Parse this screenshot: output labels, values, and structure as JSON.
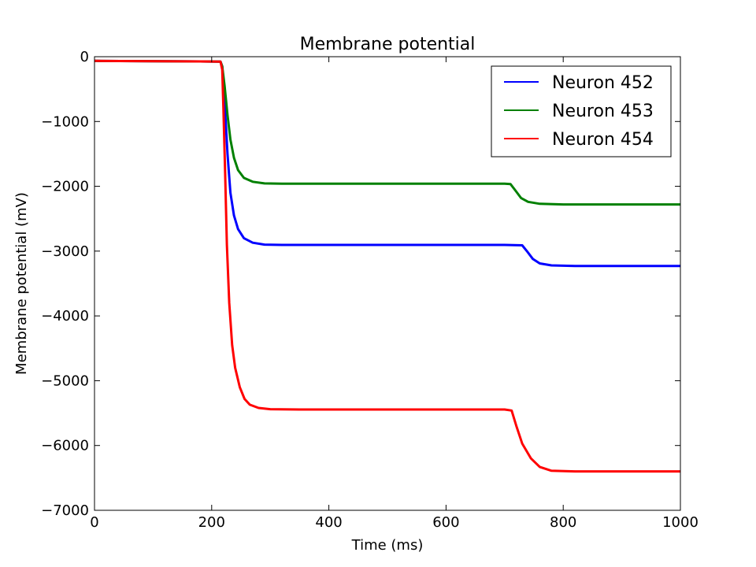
{
  "chart_data": {
    "type": "line",
    "title": "Membrane potential",
    "xlabel": "Time (ms)",
    "ylabel": "Membrane potential (mV)",
    "xlim": [
      0,
      1000
    ],
    "ylim": [
      -7000,
      0
    ],
    "xticks": [
      0,
      200,
      400,
      600,
      800,
      1000
    ],
    "yticks": [
      0,
      -1000,
      -2000,
      -3000,
      -4000,
      -5000,
      -6000,
      -7000
    ],
    "xtick_labels": [
      "0",
      "200",
      "400",
      "600",
      "800",
      "1000"
    ],
    "ytick_labels": [
      "0",
      "−1000",
      "−2000",
      "−3000",
      "−4000",
      "−5000",
      "−6000",
      "−7000"
    ],
    "grid": false,
    "legend_position": "top-right",
    "series": [
      {
        "name": "Neuron 452",
        "color": "#0000ff",
        "x": [
          0,
          215,
          218,
          222,
          227,
          232,
          238,
          245,
          255,
          270,
          290,
          320,
          400,
          500,
          600,
          700,
          730,
          738,
          748,
          760,
          780,
          820,
          900,
          1000
        ],
        "y": [
          -65,
          -75,
          -150,
          -700,
          -1500,
          -2100,
          -2450,
          -2660,
          -2800,
          -2870,
          -2900,
          -2905,
          -2905,
          -2905,
          -2905,
          -2905,
          -2910,
          -3000,
          -3120,
          -3190,
          -3220,
          -3230,
          -3230,
          -3230
        ]
      },
      {
        "name": "Neuron 453",
        "color": "#008000",
        "x": [
          0,
          215,
          218,
          222,
          227,
          232,
          238,
          245,
          255,
          270,
          290,
          320,
          400,
          500,
          600,
          700,
          710,
          718,
          728,
          740,
          760,
          800,
          900,
          1000
        ],
        "y": [
          -65,
          -75,
          -150,
          -450,
          -900,
          -1280,
          -1560,
          -1750,
          -1870,
          -1930,
          -1955,
          -1960,
          -1960,
          -1960,
          -1960,
          -1960,
          -1965,
          -2060,
          -2180,
          -2240,
          -2270,
          -2280,
          -2280,
          -2280
        ]
      },
      {
        "name": "Neuron 454",
        "color": "#ff0000",
        "x": [
          0,
          215,
          218,
          220,
          223,
          226,
          230,
          235,
          240,
          248,
          256,
          265,
          280,
          300,
          350,
          400,
          500,
          600,
          700,
          712,
          720,
          730,
          745,
          760,
          780,
          820,
          900,
          1000
        ],
        "y": [
          -65,
          -75,
          -200,
          -800,
          -1800,
          -2900,
          -3800,
          -4450,
          -4800,
          -5100,
          -5280,
          -5370,
          -5420,
          -5440,
          -5445,
          -5445,
          -5445,
          -5445,
          -5445,
          -5460,
          -5700,
          -5970,
          -6200,
          -6330,
          -6390,
          -6400,
          -6400,
          -6400
        ]
      }
    ]
  }
}
